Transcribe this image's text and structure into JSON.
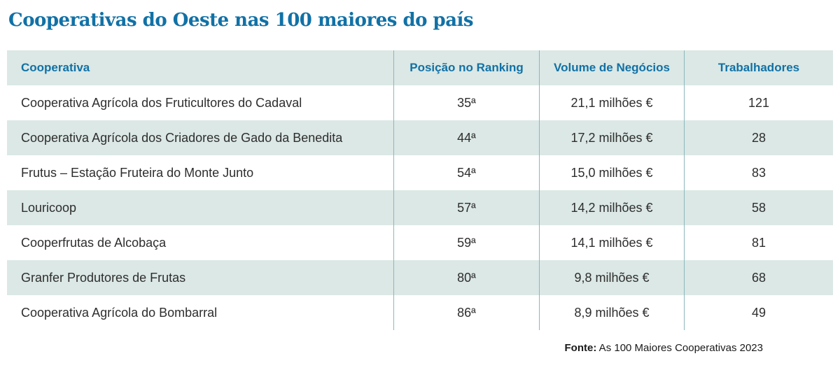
{
  "title": "Cooperativas do Oeste nas 100 maiores do país",
  "chart_data": {
    "type": "table",
    "title": "Cooperativas do Oeste nas 100 maiores do país",
    "columns": [
      "Cooperativa",
      "Posição no Ranking",
      "Volume de Negócios",
      "Trabalhadores"
    ],
    "rows": [
      [
        "Cooperativa Agrícola dos Fruticultores do Cadaval",
        "35ª",
        "21,1 milhões €",
        "121"
      ],
      [
        "Cooperativa Agrícola dos Criadores de Gado da Benedita",
        "44ª",
        "17,2 milhões €",
        "28"
      ],
      [
        "Frutus – Estação Fruteira do Monte Junto",
        "54ª",
        "15,0 milhões €",
        "83"
      ],
      [
        "Louricoop",
        "57ª",
        "14,2 milhões €",
        "58"
      ],
      [
        "Cooperfrutas de Alcobaça",
        "59ª",
        "14,1 milhões €",
        "81"
      ],
      [
        "Granfer Produtores de Frutas",
        "80ª",
        "9,8 milhões €",
        "68"
      ],
      [
        "Cooperativa Agrícola do Bombarral",
        "86ª",
        "8,9 milhões €",
        "49"
      ]
    ],
    "source": "Fonte: As 100 Maiores Cooperativas 2023",
    "layout": {
      "shaded_rows": "alternating starting with header",
      "column_alignment": [
        "left",
        "center",
        "center",
        "center"
      ]
    }
  },
  "footer": {
    "label": "Fonte:",
    "text": " As 100 Maiores Cooperativas 2023"
  },
  "colors": {
    "accent": "#1171a6",
    "row_shade": "#dbe8e5",
    "divider": "#8cb7bc",
    "text": "#2e2e2e"
  }
}
